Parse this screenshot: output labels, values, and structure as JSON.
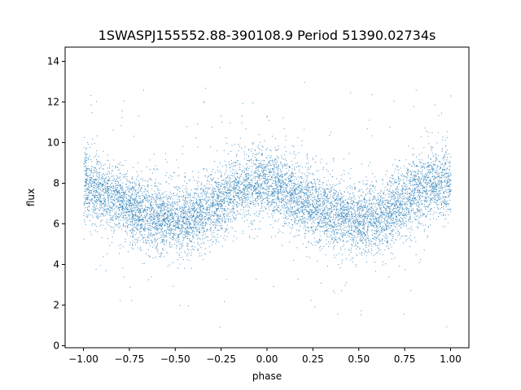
{
  "chart_data": {
    "type": "scatter",
    "title": "1SWASPJ155552.88-390108.9 Period 51390.02734s",
    "xlabel": "phase",
    "ylabel": "flux",
    "xlim": [
      -1.1,
      1.1
    ],
    "ylim": [
      -0.1,
      14.7
    ],
    "xticks": [
      -1.0,
      -0.75,
      -0.5,
      -0.25,
      0.0,
      0.25,
      0.5,
      0.75,
      1.0
    ],
    "xtick_labels": [
      "−1.00",
      "−0.75",
      "−0.50",
      "−0.25",
      "0.00",
      "0.25",
      "0.50",
      "0.75",
      "1.00"
    ],
    "yticks": [
      0,
      2,
      4,
      6,
      8,
      10,
      12,
      14
    ],
    "ytick_labels": [
      "0",
      "2",
      "4",
      "6",
      "8",
      "10",
      "12",
      "14"
    ],
    "grid": false,
    "point_color": "#1f77b4",
    "x_range": [
      -1.0,
      1.0
    ],
    "profile": {
      "phase": [
        -1.0,
        -0.9,
        -0.8,
        -0.7,
        -0.6,
        -0.5,
        -0.4,
        -0.3,
        -0.2,
        -0.1,
        0.0,
        0.1,
        0.2,
        0.3,
        0.4,
        0.5,
        0.6,
        0.7,
        0.8,
        0.9,
        1.0
      ],
      "median_flux": [
        8.0,
        7.6,
        7.1,
        6.6,
        6.4,
        6.2,
        6.3,
        6.9,
        7.5,
        8.0,
        8.1,
        7.7,
        7.1,
        6.6,
        6.4,
        6.2,
        6.3,
        6.9,
        7.5,
        8.0,
        8.1
      ]
    },
    "flux_range": [
      0.5,
      14.0
    ]
  }
}
